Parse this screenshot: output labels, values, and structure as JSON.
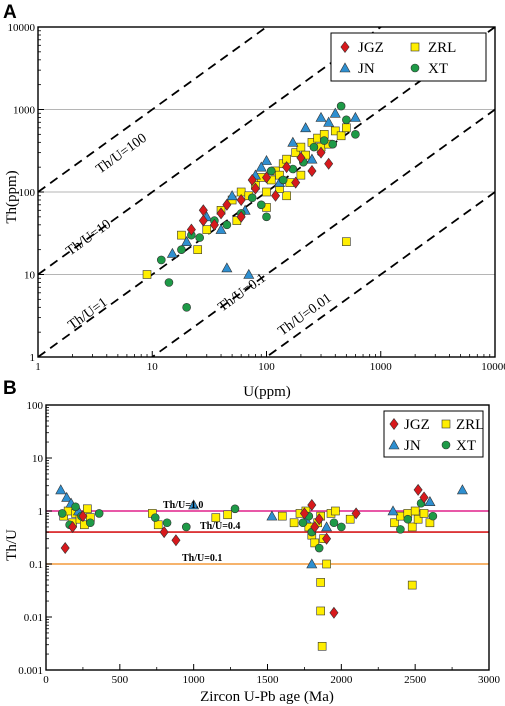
{
  "colors": {
    "JGZ": "#d7191c",
    "ZRL": "#ffee00",
    "JN": "#2e8fd0",
    "XT": "#1e9a47",
    "ref_1_0": "#e0218a",
    "ref_0_4": "#d7191c",
    "ref_0_1": "#f39a3c",
    "marker_stroke": "#333333"
  },
  "chart_data": [
    {
      "panel_letter": "A",
      "type": "scatter",
      "xlabel": "U(ppm)",
      "ylabel": "Th(ppm)",
      "xscale": "log",
      "yscale": "log",
      "xlim": [
        1,
        10000
      ],
      "ylim": [
        1,
        10000
      ],
      "xticks": [
        "1",
        "10",
        "100",
        "1000",
        "10000"
      ],
      "yticks": [
        "1",
        "10",
        "100",
        "1000",
        "10000"
      ],
      "horizontal_gridlines": [
        10,
        100,
        1000
      ],
      "legend": {
        "position": "top-right",
        "entries": [
          "JGZ",
          "ZRL",
          "JN",
          "XT"
        ]
      },
      "guide_lines": [
        {
          "label": "Th/U=100",
          "ratio": 100
        },
        {
          "label": "Th/U=10",
          "ratio": 10
        },
        {
          "label": "Th/U=1",
          "ratio": 1
        },
        {
          "label": "Th/U=0.1",
          "ratio": 0.1
        },
        {
          "label": "Th/U=0.01",
          "ratio": 0.01
        }
      ],
      "series": [
        {
          "name": "JGZ",
          "marker": "diamond",
          "points": [
            [
              22,
              35
            ],
            [
              28,
              60
            ],
            [
              35,
              40
            ],
            [
              45,
              70
            ],
            [
              60,
              80
            ],
            [
              80,
              110
            ],
            [
              100,
              150
            ],
            [
              120,
              90
            ],
            [
              150,
              200
            ],
            [
              180,
              130
            ],
            [
              200,
              260
            ],
            [
              250,
              180
            ],
            [
              300,
              300
            ],
            [
              350,
              220
            ],
            [
              60,
              50
            ],
            [
              75,
              140
            ],
            [
              40,
              55
            ],
            [
              28,
              45
            ]
          ]
        },
        {
          "name": "ZRL",
          "marker": "square",
          "points": [
            [
              9,
              10
            ],
            [
              18,
              30
            ],
            [
              25,
              20
            ],
            [
              30,
              35
            ],
            [
              40,
              60
            ],
            [
              50,
              80
            ],
            [
              55,
              45
            ],
            [
              60,
              100
            ],
            [
              70,
              90
            ],
            [
              80,
              120
            ],
            [
              90,
              150
            ],
            [
              100,
              100
            ],
            [
              110,
              140
            ],
            [
              120,
              180
            ],
            [
              130,
              160
            ],
            [
              140,
              220
            ],
            [
              150,
              250
            ],
            [
              160,
              130
            ],
            [
              180,
              300
            ],
            [
              200,
              350
            ],
            [
              220,
              280
            ],
            [
              250,
              400
            ],
            [
              280,
              450
            ],
            [
              300,
              350
            ],
            [
              320,
              500
            ],
            [
              350,
              380
            ],
            [
              400,
              550
            ],
            [
              450,
              480
            ],
            [
              500,
              600
            ],
            [
              500,
              25
            ],
            [
              100,
              65
            ],
            [
              150,
              90
            ],
            [
              130,
              110
            ],
            [
              200,
              160
            ]
          ]
        },
        {
          "name": "JN",
          "marker": "triangle",
          "points": [
            [
              15,
              18
            ],
            [
              20,
              25
            ],
            [
              30,
              50
            ],
            [
              40,
              35
            ],
            [
              50,
              90
            ],
            [
              65,
              60
            ],
            [
              80,
              160
            ],
            [
              100,
              240
            ],
            [
              130,
              130
            ],
            [
              170,
              400
            ],
            [
              220,
              600
            ],
            [
              300,
              800
            ],
            [
              400,
              900
            ],
            [
              600,
              800
            ],
            [
              45,
              12
            ],
            [
              70,
              10
            ],
            [
              90,
              200
            ],
            [
              250,
              250
            ],
            [
              350,
              700
            ]
          ]
        },
        {
          "name": "XT",
          "marker": "circle",
          "points": [
            [
              12,
              15
            ],
            [
              14,
              8
            ],
            [
              18,
              20
            ],
            [
              22,
              30
            ],
            [
              26,
              28
            ],
            [
              35,
              45
            ],
            [
              45,
              40
            ],
            [
              60,
              55
            ],
            [
              75,
              85
            ],
            [
              90,
              70
            ],
            [
              110,
              180
            ],
            [
              140,
              140
            ],
            [
              170,
              190
            ],
            [
              210,
              230
            ],
            [
              260,
              350
            ],
            [
              320,
              420
            ],
            [
              380,
              380
            ],
            [
              450,
              1100
            ],
            [
              500,
              750
            ],
            [
              600,
              500
            ],
            [
              20,
              4
            ],
            [
              100,
              50
            ]
          ]
        }
      ]
    },
    {
      "panel_letter": "B",
      "type": "scatter",
      "xlabel": "Zircon U-Pb age (Ma)",
      "ylabel": "Th/U",
      "xscale": "linear",
      "yscale": "log",
      "xlim": [
        0,
        3000
      ],
      "ylim": [
        0.001,
        100
      ],
      "xticks": [
        "0",
        "500",
        "1000",
        "1500",
        "2000",
        "2500",
        "3000"
      ],
      "yticks": [
        "0.001",
        "0.01",
        "0.1",
        "1",
        "10",
        "100"
      ],
      "legend": {
        "position": "top-right",
        "entries": [
          "JGZ",
          "ZRL",
          "JN",
          "XT"
        ]
      },
      "reference_lines": [
        {
          "label": "Th/U=1.0",
          "value": 1.0
        },
        {
          "label": "Th/U=0.4",
          "value": 0.4
        },
        {
          "label": "Th/U=0.1",
          "value": 0.1
        }
      ],
      "series": [
        {
          "name": "JGZ",
          "marker": "diamond",
          "points": [
            [
              130,
              0.2
            ],
            [
              180,
              0.5
            ],
            [
              250,
              0.8
            ],
            [
              800,
              0.4
            ],
            [
              880,
              0.28
            ],
            [
              1750,
              0.9
            ],
            [
              1800,
              1.3
            ],
            [
              1820,
              0.5
            ],
            [
              1900,
              0.3
            ],
            [
              1950,
              0.012
            ],
            [
              2100,
              0.9
            ],
            [
              2520,
              2.5
            ],
            [
              2560,
              1.8
            ],
            [
              1850,
              0.7
            ]
          ]
        },
        {
          "name": "ZRL",
          "marker": "square",
          "points": [
            [
              120,
              0.8
            ],
            [
              150,
              1.0
            ],
            [
              180,
              0.6
            ],
            [
              200,
              0.9
            ],
            [
              230,
              0.7
            ],
            [
              260,
              0.55
            ],
            [
              280,
              1.1
            ],
            [
              300,
              0.75
            ],
            [
              720,
              0.9
            ],
            [
              760,
              0.55
            ],
            [
              1150,
              0.75
            ],
            [
              1230,
              0.85
            ],
            [
              1600,
              0.8
            ],
            [
              1680,
              0.6
            ],
            [
              1720,
              0.9
            ],
            [
              1760,
              1.0
            ],
            [
              1780,
              0.5
            ],
            [
              1800,
              0.35
            ],
            [
              1820,
              0.25
            ],
            [
              1840,
              0.6
            ],
            [
              1860,
              0.8
            ],
            [
              1880,
              0.3
            ],
            [
              1900,
              0.1
            ],
            [
              1930,
              0.9
            ],
            [
              1960,
              1.0
            ],
            [
              2060,
              0.7
            ],
            [
              2360,
              0.6
            ],
            [
              2400,
              0.8
            ],
            [
              2450,
              0.9
            ],
            [
              2480,
              0.5
            ],
            [
              2500,
              1.0
            ],
            [
              2520,
              0.7
            ],
            [
              2560,
              0.9
            ],
            [
              2600,
              0.6
            ],
            [
              2480,
              0.04
            ],
            [
              1860,
              0.045
            ],
            [
              1870,
              0.0028
            ],
            [
              1860,
              0.013
            ]
          ]
        },
        {
          "name": "JN",
          "marker": "triangle",
          "points": [
            [
              100,
              2.5
            ],
            [
              140,
              1.8
            ],
            [
              170,
              1.4
            ],
            [
              220,
              1.0
            ],
            [
              1000,
              1.3
            ],
            [
              1800,
              0.1
            ],
            [
              1900,
              0.5
            ],
            [
              2350,
              1.0
            ],
            [
              2600,
              1.5
            ],
            [
              2820,
              2.5
            ],
            [
              1760,
              0.7
            ],
            [
              1530,
              0.8
            ]
          ]
        },
        {
          "name": "XT",
          "marker": "circle",
          "points": [
            [
              110,
              0.9
            ],
            [
              160,
              0.55
            ],
            [
              200,
              1.2
            ],
            [
              240,
              0.8
            ],
            [
              300,
              0.6
            ],
            [
              360,
              0.9
            ],
            [
              740,
              0.75
            ],
            [
              820,
              0.6
            ],
            [
              950,
              0.5
            ],
            [
              1280,
              1.1
            ],
            [
              1740,
              0.6
            ],
            [
              1780,
              0.8
            ],
            [
              1800,
              0.4
            ],
            [
              1850,
              0.2
            ],
            [
              1950,
              0.6
            ],
            [
              2000,
              0.5
            ],
            [
              2400,
              0.45
            ],
            [
              2450,
              0.7
            ],
            [
              2540,
              1.4
            ],
            [
              2620,
              0.8
            ]
          ]
        }
      ]
    }
  ]
}
